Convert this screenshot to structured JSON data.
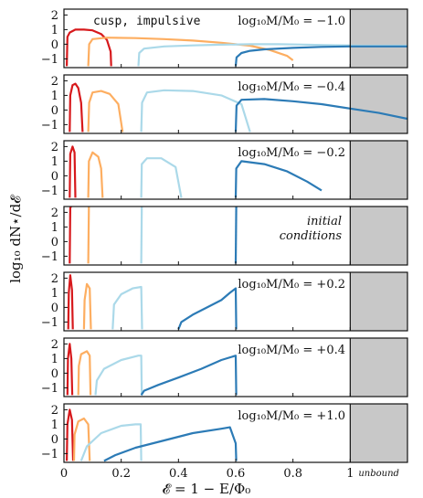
{
  "chart_data": {
    "type": "line",
    "xlabel": "𝓔 = 1 − E/Φ₀",
    "ylabel": "log₁₀ dN⋆/d𝓔",
    "x_ticks": [
      "0",
      "0.2",
      "0.4",
      "0.6",
      "0.8",
      "1"
    ],
    "y_ticks": [
      "−1",
      "0",
      "1",
      "2"
    ],
    "xlim": [
      0,
      1.2
    ],
    "ylim": [
      -1.6,
      2.4
    ],
    "unbound_label": "unbound",
    "unbound_from": 1.0,
    "series_colors": [
      "#d7191c",
      "#fdae61",
      "#abd9e9",
      "#2c7bb6"
    ],
    "panels": [
      {
        "label": "log₁₀M/M₀ = −1.0",
        "extra_label": "cusp, impulsive",
        "curves": [
          [
            [
              0.01,
              -1.5
            ],
            [
              0.012,
              0.5
            ],
            [
              0.02,
              0.8
            ],
            [
              0.04,
              1.0
            ],
            [
              0.07,
              1.0
            ],
            [
              0.1,
              0.95
            ],
            [
              0.13,
              0.7
            ],
            [
              0.15,
              0.3
            ],
            [
              0.163,
              -0.5
            ],
            [
              0.165,
              -1.5
            ]
          ],
          [
            [
              0.085,
              -1.5
            ],
            [
              0.088,
              0.0
            ],
            [
              0.1,
              0.35
            ],
            [
              0.15,
              0.45
            ],
            [
              0.25,
              0.42
            ],
            [
              0.35,
              0.35
            ],
            [
              0.45,
              0.25
            ],
            [
              0.55,
              0.1
            ],
            [
              0.65,
              -0.1
            ],
            [
              0.72,
              -0.4
            ],
            [
              0.78,
              -0.8
            ],
            [
              0.8,
              -1.1
            ]
          ],
          [
            [
              0.26,
              -1.5
            ],
            [
              0.263,
              -0.6
            ],
            [
              0.28,
              -0.3
            ],
            [
              0.35,
              -0.15
            ],
            [
              0.45,
              -0.08
            ],
            [
              0.55,
              -0.03
            ],
            [
              0.65,
              0.0
            ],
            [
              0.75,
              0.0
            ],
            [
              0.9,
              -0.05
            ],
            [
              1.05,
              -0.1
            ],
            [
              1.2,
              -0.1
            ]
          ],
          [
            [
              0.6,
              -1.5
            ],
            [
              0.603,
              -0.9
            ],
            [
              0.62,
              -0.6
            ],
            [
              0.65,
              -0.45
            ],
            [
              0.7,
              -0.35
            ],
            [
              0.8,
              -0.25
            ],
            [
              0.9,
              -0.18
            ],
            [
              1.0,
              -0.15
            ],
            [
              1.1,
              -0.15
            ],
            [
              1.2,
              -0.15
            ]
          ]
        ]
      },
      {
        "label": "log₁₀M/M₀ = −0.4",
        "extra_label": "",
        "curves": [
          [
            [
              0.02,
              -1.5
            ],
            [
              0.022,
              1.0
            ],
            [
              0.03,
              1.7
            ],
            [
              0.04,
              1.8
            ],
            [
              0.05,
              1.5
            ],
            [
              0.06,
              0.5
            ],
            [
              0.065,
              -1.5
            ]
          ],
          [
            [
              0.085,
              -1.5
            ],
            [
              0.088,
              0.5
            ],
            [
              0.1,
              1.2
            ],
            [
              0.13,
              1.3
            ],
            [
              0.16,
              1.1
            ],
            [
              0.19,
              0.4
            ],
            [
              0.205,
              -1.5
            ]
          ],
          [
            [
              0.27,
              -1.5
            ],
            [
              0.273,
              0.5
            ],
            [
              0.29,
              1.2
            ],
            [
              0.35,
              1.35
            ],
            [
              0.45,
              1.3
            ],
            [
              0.55,
              1.0
            ],
            [
              0.62,
              0.4
            ],
            [
              0.65,
              -1.5
            ]
          ],
          [
            [
              0.6,
              -1.5
            ],
            [
              0.603,
              0.3
            ],
            [
              0.62,
              0.7
            ],
            [
              0.7,
              0.75
            ],
            [
              0.8,
              0.6
            ],
            [
              0.9,
              0.4
            ],
            [
              1.0,
              0.1
            ],
            [
              1.1,
              -0.2
            ],
            [
              1.2,
              -0.6
            ]
          ]
        ]
      },
      {
        "label": "log₁₀M/M₀ = −0.2",
        "extra_label": "",
        "curves": [
          [
            [
              0.02,
              -1.5
            ],
            [
              0.022,
              1.5
            ],
            [
              0.03,
              2.0
            ],
            [
              0.037,
              1.6
            ],
            [
              0.04,
              -1.5
            ]
          ],
          [
            [
              0.085,
              -1.5
            ],
            [
              0.087,
              1.0
            ],
            [
              0.1,
              1.6
            ],
            [
              0.12,
              1.3
            ],
            [
              0.13,
              0.5
            ],
            [
              0.135,
              -1.5
            ]
          ],
          [
            [
              0.27,
              -1.5
            ],
            [
              0.272,
              0.8
            ],
            [
              0.29,
              1.2
            ],
            [
              0.34,
              1.2
            ],
            [
              0.39,
              0.6
            ],
            [
              0.41,
              -1.5
            ]
          ],
          [
            [
              0.6,
              -1.5
            ],
            [
              0.602,
              0.5
            ],
            [
              0.62,
              1.0
            ],
            [
              0.7,
              0.8
            ],
            [
              0.78,
              0.3
            ],
            [
              0.85,
              -0.4
            ],
            [
              0.9,
              -1.0
            ]
          ]
        ]
      },
      {
        "label": "",
        "extra_label": "",
        "notes": [
          "initial",
          "conditions"
        ],
        "curves": [
          [
            [
              0.02,
              -1.5
            ],
            [
              0.022,
              2.3
            ],
            [
              0.025,
              2.4
            ]
          ],
          [
            [
              0.085,
              -1.5
            ],
            [
              0.087,
              2.4
            ]
          ],
          [
            [
              0.27,
              -1.5
            ],
            [
              0.272,
              2.4
            ]
          ],
          [
            [
              0.6,
              -1.5
            ],
            [
              0.602,
              2.4
            ]
          ]
        ]
      },
      {
        "label": "log₁₀M/M₀ = +0.2",
        "extra_label": "",
        "curves": [
          [
            [
              0.015,
              -1.5
            ],
            [
              0.017,
              1.0
            ],
            [
              0.022,
              2.2
            ],
            [
              0.028,
              1.2
            ],
            [
              0.031,
              -1.5
            ]
          ],
          [
            [
              0.07,
              -1.5
            ],
            [
              0.072,
              0.5
            ],
            [
              0.08,
              1.6
            ],
            [
              0.09,
              1.3
            ],
            [
              0.094,
              -1.5
            ]
          ],
          [
            [
              0.17,
              -1.5
            ],
            [
              0.175,
              0.2
            ],
            [
              0.2,
              0.9
            ],
            [
              0.24,
              1.3
            ],
            [
              0.27,
              1.4
            ],
            [
              0.273,
              -1.5
            ]
          ],
          [
            [
              0.4,
              -1.5
            ],
            [
              0.41,
              -1.0
            ],
            [
              0.45,
              -0.5
            ],
            [
              0.5,
              0.0
            ],
            [
              0.55,
              0.5
            ],
            [
              0.58,
              1.0
            ],
            [
              0.6,
              1.3
            ],
            [
              0.602,
              -1.5
            ]
          ]
        ]
      },
      {
        "label": "log₁₀M/M₀ = +0.4",
        "extra_label": "",
        "curves": [
          [
            [
              0.012,
              -1.5
            ],
            [
              0.014,
              1.0
            ],
            [
              0.02,
              2.0
            ],
            [
              0.026,
              1.0
            ],
            [
              0.029,
              -1.5
            ]
          ],
          [
            [
              0.05,
              -1.5
            ],
            [
              0.052,
              0.5
            ],
            [
              0.06,
              1.3
            ],
            [
              0.08,
              1.5
            ],
            [
              0.09,
              1.2
            ],
            [
              0.093,
              -1.5
            ]
          ],
          [
            [
              0.11,
              -1.5
            ],
            [
              0.115,
              -0.5
            ],
            [
              0.14,
              0.3
            ],
            [
              0.2,
              0.9
            ],
            [
              0.26,
              1.2
            ],
            [
              0.27,
              1.2
            ],
            [
              0.272,
              -1.5
            ]
          ],
          [
            [
              0.27,
              -1.5
            ],
            [
              0.28,
              -1.2
            ],
            [
              0.33,
              -0.8
            ],
            [
              0.4,
              -0.3
            ],
            [
              0.48,
              0.3
            ],
            [
              0.55,
              0.9
            ],
            [
              0.6,
              1.2
            ],
            [
              0.602,
              -1.5
            ]
          ]
        ]
      },
      {
        "label": "log₁₀M/M₀ = +1.0",
        "extra_label": "",
        "curves": [
          [
            [
              0.01,
              -1.5
            ],
            [
              0.012,
              1.0
            ],
            [
              0.02,
              2.0
            ],
            [
              0.028,
              1.3
            ],
            [
              0.032,
              -1.5
            ]
          ],
          [
            [
              0.035,
              -1.5
            ],
            [
              0.037,
              0.3
            ],
            [
              0.05,
              1.2
            ],
            [
              0.07,
              1.4
            ],
            [
              0.085,
              1.0
            ],
            [
              0.09,
              -1.5
            ]
          ],
          [
            [
              0.06,
              -1.5
            ],
            [
              0.08,
              -0.5
            ],
            [
              0.13,
              0.4
            ],
            [
              0.2,
              0.9
            ],
            [
              0.25,
              1.0
            ],
            [
              0.268,
              1.0
            ],
            [
              0.27,
              -1.5
            ]
          ],
          [
            [
              0.14,
              -1.5
            ],
            [
              0.18,
              -1.1
            ],
            [
              0.25,
              -0.6
            ],
            [
              0.35,
              -0.1
            ],
            [
              0.45,
              0.4
            ],
            [
              0.55,
              0.7
            ],
            [
              0.58,
              0.8
            ],
            [
              0.6,
              -0.3
            ],
            [
              0.602,
              -1.5
            ]
          ]
        ]
      }
    ]
  }
}
